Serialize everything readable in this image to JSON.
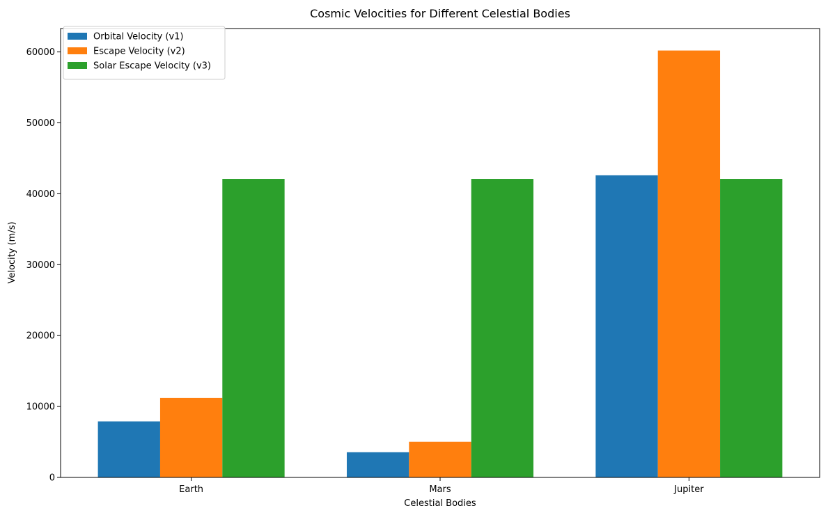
{
  "chart_data": {
    "type": "bar",
    "title": "Cosmic Velocities for Different Celestial Bodies",
    "xlabel": "Celestial Bodies",
    "ylabel": "Velocity (m/s)",
    "categories": [
      "Earth",
      "Mars",
      "Jupiter"
    ],
    "series": [
      {
        "name": "Orbital Velocity (v1)",
        "color": "#1f77b4",
        "values": [
          7900,
          3550,
          42600
        ]
      },
      {
        "name": "Escape Velocity (v2)",
        "color": "#ff7f0e",
        "values": [
          11200,
          5030,
          60200
        ]
      },
      {
        "name": "Solar Escape Velocity (v3)",
        "color": "#2ca02c",
        "values": [
          42100,
          42100,
          42100
        ]
      }
    ],
    "ylim": [
      0,
      63300
    ],
    "yticks": [
      0,
      10000,
      20000,
      30000,
      40000,
      50000,
      60000
    ],
    "grid": false,
    "legend_position": "top-left"
  }
}
